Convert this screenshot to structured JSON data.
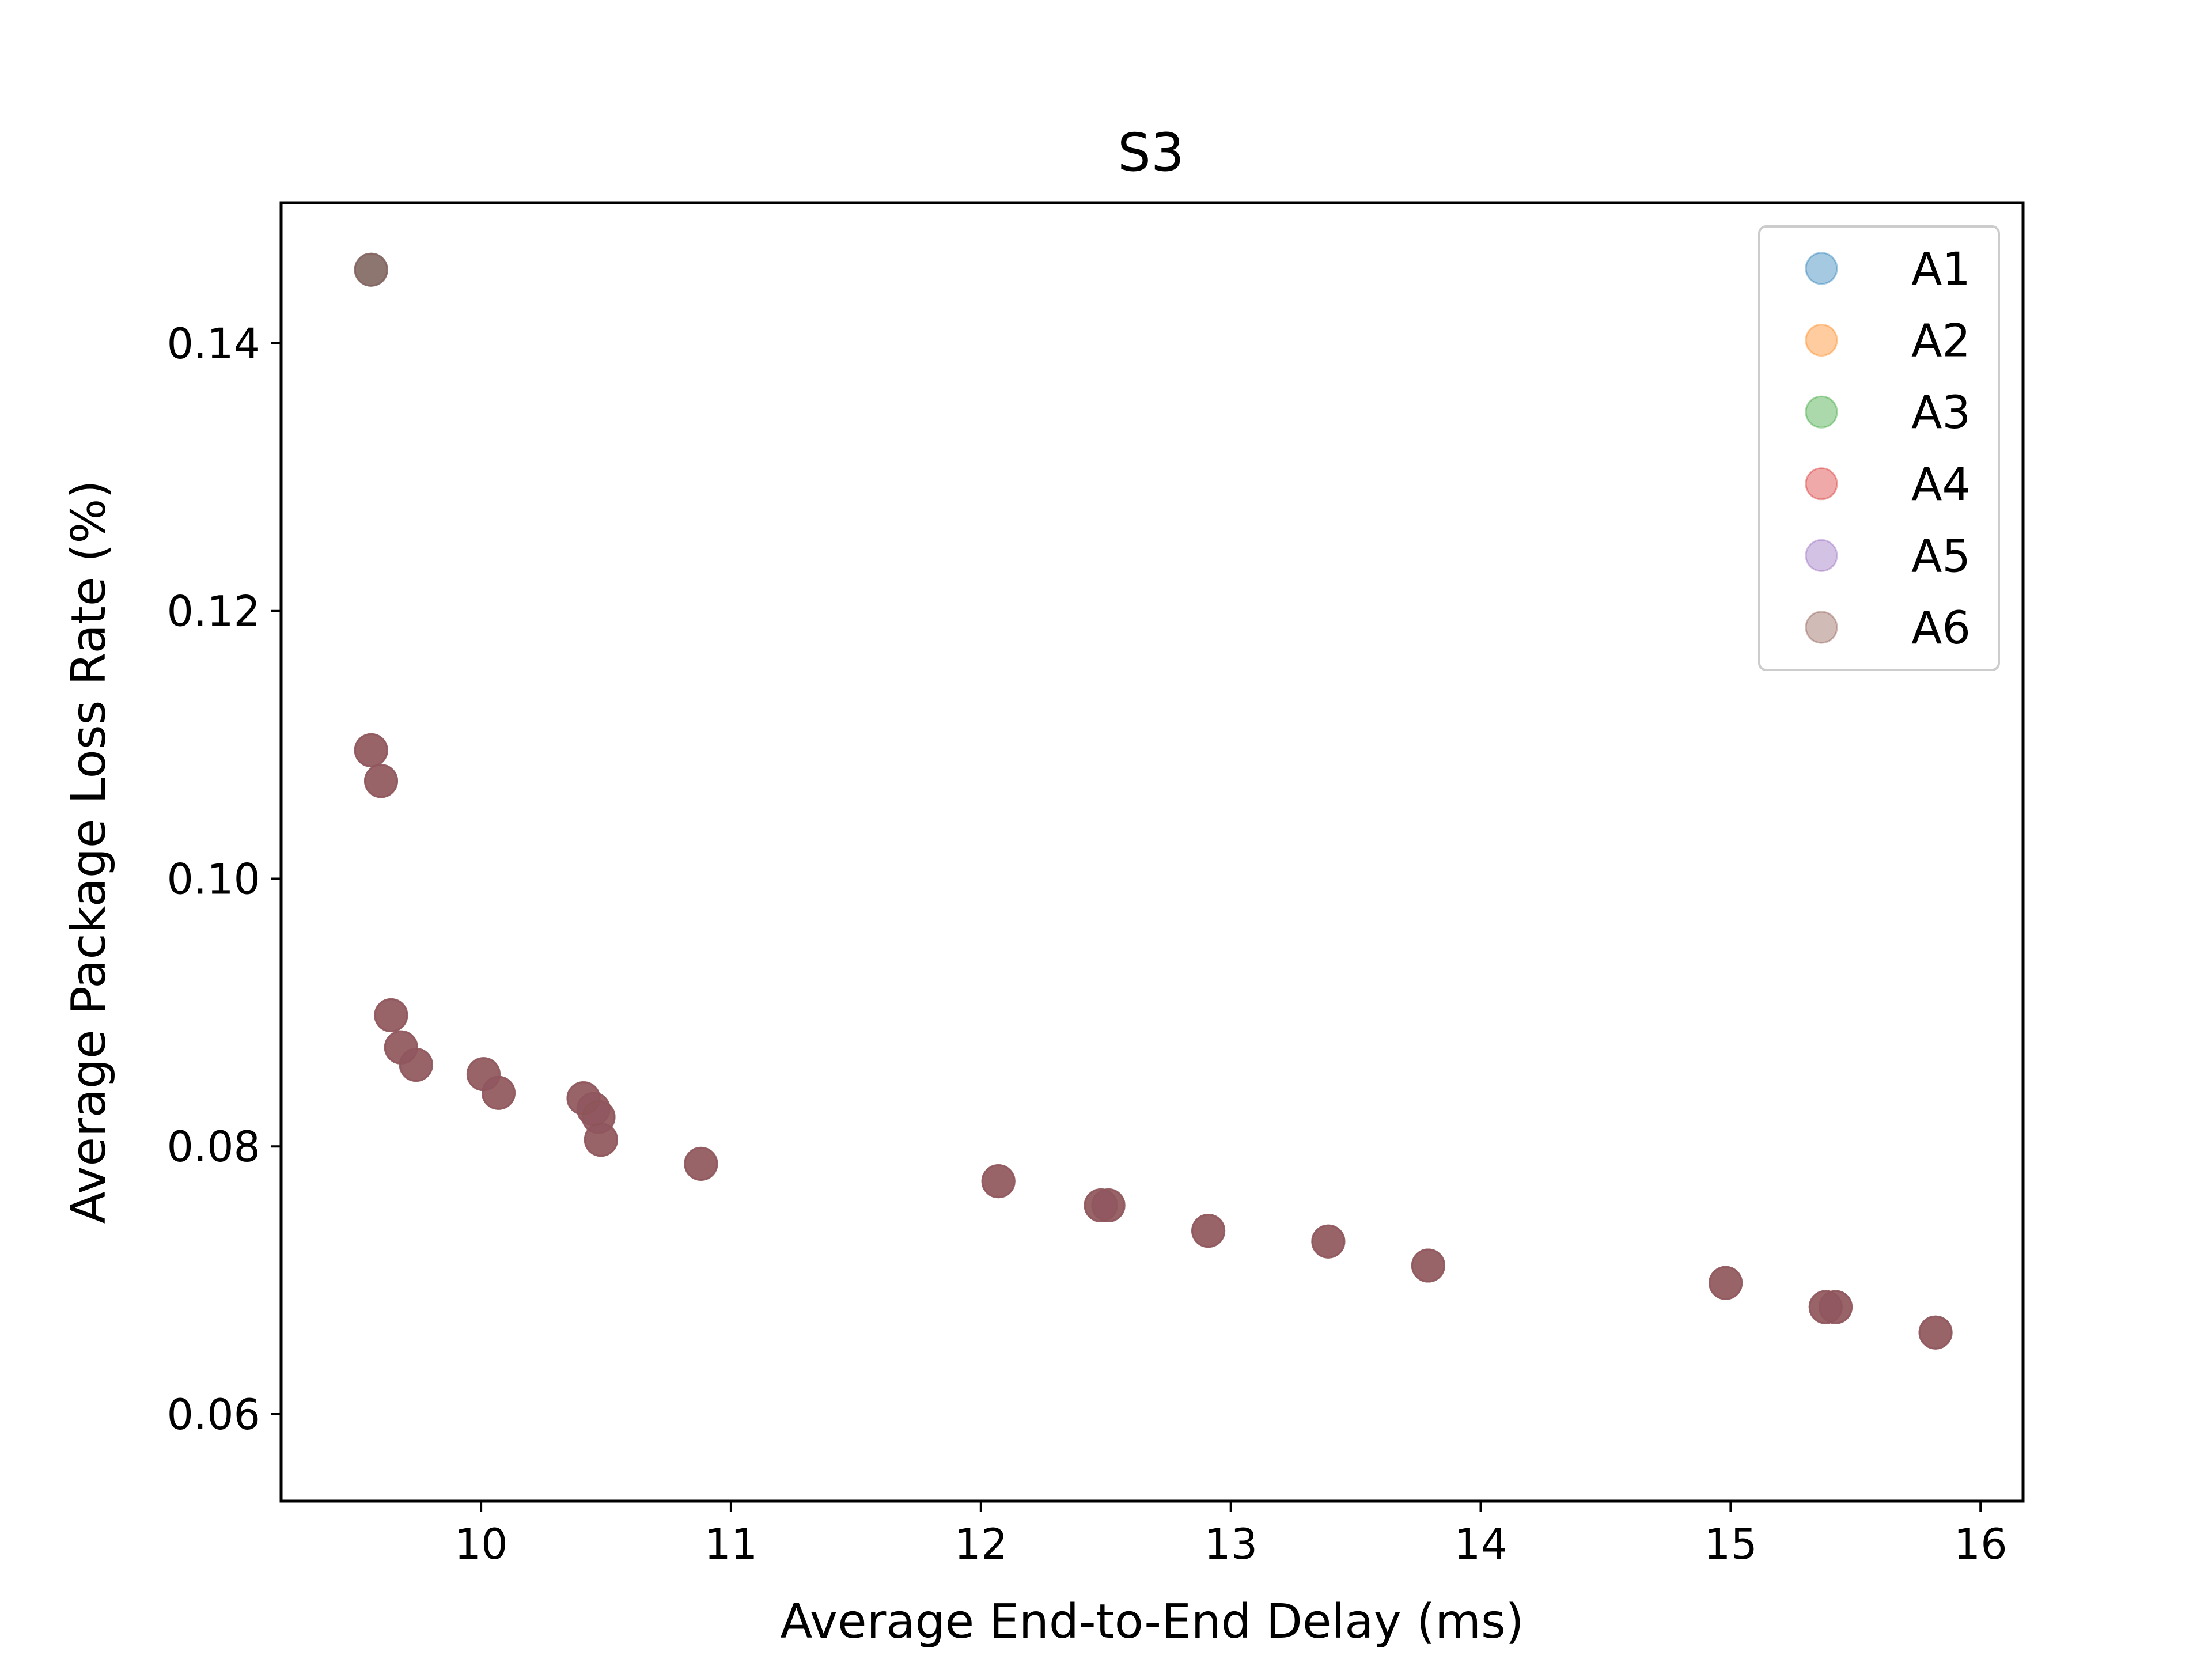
{
  "chart_data": {
    "type": "scatter",
    "title": "S3",
    "xlabel": "Average End-to-End Delay (ms)",
    "ylabel": "Average Package Loss Rate (%)",
    "xlim": [
      9.2,
      16.17
    ],
    "ylim": [
      0.0535,
      0.1505
    ],
    "xticks": [
      10,
      11,
      12,
      13,
      14,
      15,
      16
    ],
    "xtick_labels": [
      "10",
      "11",
      "12",
      "13",
      "14",
      "15",
      "16"
    ],
    "yticks": [
      0.06,
      0.08,
      0.1,
      0.12,
      0.14
    ],
    "ytick_labels": [
      "0.06",
      "0.08",
      "0.10",
      "0.12",
      "0.14"
    ],
    "grid": false,
    "legend_position": "top-right",
    "marker_opacity": 0.4,
    "series": [
      {
        "name": "A1",
        "color": "#1f77b4",
        "points": [
          [
            9.56,
            0.1455
          ],
          [
            9.56,
            0.1096
          ],
          [
            9.6,
            0.1073
          ],
          [
            9.64,
            0.0898
          ],
          [
            9.68,
            0.0874
          ],
          [
            9.74,
            0.0861
          ],
          [
            10.01,
            0.0854
          ],
          [
            10.07,
            0.084
          ],
          [
            10.41,
            0.0836
          ],
          [
            10.45,
            0.0828
          ],
          [
            10.47,
            0.0822
          ],
          [
            10.48,
            0.0805
          ],
          [
            10.88,
            0.0787
          ],
          [
            12.07,
            0.0774
          ],
          [
            12.48,
            0.0756
          ],
          [
            12.51,
            0.0756
          ],
          [
            12.91,
            0.0737
          ],
          [
            13.39,
            0.0729
          ],
          [
            13.79,
            0.0711
          ],
          [
            14.98,
            0.0698
          ],
          [
            15.38,
            0.068
          ],
          [
            15.42,
            0.068
          ],
          [
            15.82,
            0.0661
          ]
        ]
      },
      {
        "name": "A2",
        "color": "#ff7f0e",
        "points": [
          [
            9.56,
            0.1455
          ],
          [
            9.56,
            0.1096
          ],
          [
            9.6,
            0.1073
          ],
          [
            9.64,
            0.0898
          ],
          [
            9.68,
            0.0874
          ],
          [
            9.74,
            0.0861
          ],
          [
            10.01,
            0.0854
          ],
          [
            10.07,
            0.084
          ],
          [
            10.41,
            0.0836
          ],
          [
            10.45,
            0.0828
          ],
          [
            10.47,
            0.0822
          ],
          [
            10.48,
            0.0805
          ],
          [
            10.88,
            0.0787
          ],
          [
            12.07,
            0.0774
          ],
          [
            12.48,
            0.0756
          ],
          [
            12.51,
            0.0756
          ],
          [
            12.91,
            0.0737
          ],
          [
            13.39,
            0.0729
          ],
          [
            13.79,
            0.0711
          ],
          [
            14.98,
            0.0698
          ],
          [
            15.38,
            0.068
          ],
          [
            15.42,
            0.068
          ],
          [
            15.82,
            0.0661
          ]
        ]
      },
      {
        "name": "A3",
        "color": "#2ca02c",
        "points": [
          [
            9.56,
            0.1455
          ],
          [
            9.56,
            0.1096
          ],
          [
            9.6,
            0.1073
          ],
          [
            9.64,
            0.0898
          ],
          [
            9.68,
            0.0874
          ],
          [
            9.74,
            0.0861
          ],
          [
            10.01,
            0.0854
          ],
          [
            10.07,
            0.084
          ],
          [
            10.41,
            0.0836
          ],
          [
            10.45,
            0.0828
          ],
          [
            10.47,
            0.0822
          ],
          [
            10.48,
            0.0805
          ],
          [
            10.88,
            0.0787
          ],
          [
            12.07,
            0.0774
          ],
          [
            12.48,
            0.0756
          ],
          [
            12.51,
            0.0756
          ],
          [
            12.91,
            0.0737
          ],
          [
            13.39,
            0.0729
          ],
          [
            13.79,
            0.0711
          ],
          [
            14.98,
            0.0698
          ],
          [
            15.38,
            0.068
          ],
          [
            15.42,
            0.068
          ],
          [
            15.82,
            0.0661
          ]
        ]
      },
      {
        "name": "A4",
        "color": "#d62728",
        "points": [
          [
            9.56,
            0.1096
          ],
          [
            9.6,
            0.1073
          ],
          [
            9.64,
            0.0898
          ],
          [
            9.68,
            0.0874
          ],
          [
            9.74,
            0.0861
          ],
          [
            10.01,
            0.0854
          ],
          [
            10.07,
            0.084
          ],
          [
            10.41,
            0.0836
          ],
          [
            10.45,
            0.0828
          ],
          [
            10.47,
            0.0822
          ],
          [
            10.48,
            0.0805
          ],
          [
            10.88,
            0.0787
          ],
          [
            12.07,
            0.0774
          ],
          [
            12.48,
            0.0756
          ],
          [
            12.51,
            0.0756
          ],
          [
            12.91,
            0.0737
          ],
          [
            13.39,
            0.0729
          ],
          [
            13.79,
            0.0711
          ],
          [
            14.98,
            0.0698
          ],
          [
            15.38,
            0.068
          ],
          [
            15.42,
            0.068
          ],
          [
            15.82,
            0.0661
          ]
        ]
      },
      {
        "name": "A5",
        "color": "#9467bd",
        "points": [
          [
            9.56,
            0.1455
          ],
          [
            9.56,
            0.1096
          ],
          [
            9.6,
            0.1073
          ],
          [
            9.64,
            0.0898
          ],
          [
            9.68,
            0.0874
          ],
          [
            9.74,
            0.0861
          ],
          [
            10.01,
            0.0854
          ],
          [
            10.07,
            0.084
          ],
          [
            10.41,
            0.0836
          ],
          [
            10.45,
            0.0828
          ],
          [
            10.47,
            0.0822
          ],
          [
            10.48,
            0.0805
          ],
          [
            10.88,
            0.0787
          ],
          [
            12.07,
            0.0774
          ],
          [
            12.48,
            0.0756
          ],
          [
            12.51,
            0.0756
          ],
          [
            12.91,
            0.0737
          ],
          [
            13.39,
            0.0729
          ],
          [
            13.79,
            0.0711
          ],
          [
            14.98,
            0.0698
          ],
          [
            15.38,
            0.068
          ],
          [
            15.42,
            0.068
          ],
          [
            15.82,
            0.0661
          ]
        ]
      },
      {
        "name": "A6",
        "color": "#8c564b",
        "points": [
          [
            9.56,
            0.1455
          ],
          [
            9.56,
            0.1096
          ],
          [
            9.6,
            0.1073
          ],
          [
            9.64,
            0.0898
          ],
          [
            9.68,
            0.0874
          ],
          [
            9.74,
            0.0861
          ],
          [
            10.01,
            0.0854
          ],
          [
            10.07,
            0.084
          ],
          [
            10.41,
            0.0836
          ],
          [
            10.45,
            0.0828
          ],
          [
            10.47,
            0.0822
          ],
          [
            10.48,
            0.0805
          ],
          [
            10.88,
            0.0787
          ],
          [
            12.07,
            0.0774
          ],
          [
            12.48,
            0.0756
          ],
          [
            12.51,
            0.0756
          ],
          [
            12.91,
            0.0737
          ],
          [
            13.39,
            0.0729
          ],
          [
            13.79,
            0.0711
          ],
          [
            14.98,
            0.0698
          ],
          [
            15.38,
            0.068
          ],
          [
            15.42,
            0.068
          ],
          [
            15.82,
            0.0661
          ]
        ]
      }
    ]
  }
}
